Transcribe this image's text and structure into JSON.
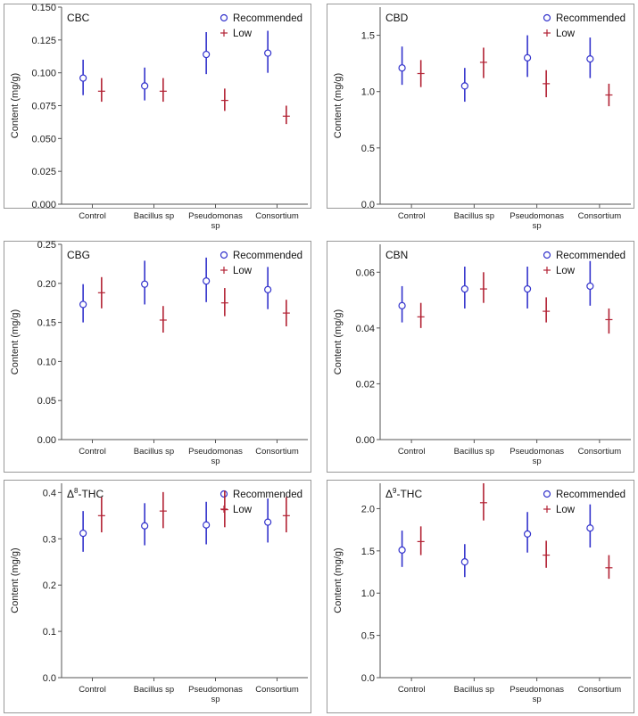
{
  "colors": {
    "recommended": "#3333cc",
    "low": "#b22234",
    "axis": "#555555",
    "panel_border": "#999999"
  },
  "chart_data": [
    {
      "type": "errorbar",
      "title": "CBC",
      "title_sup": "",
      "title_suffix": "",
      "ylabel": "Content (mg/g)",
      "categories": [
        [
          "Control"
        ],
        [
          "Bacillus sp"
        ],
        [
          "Pseudomonas",
          "sp"
        ],
        [
          "Consortium"
        ]
      ],
      "ylim": [
        0,
        0.15
      ],
      "yticks": [
        0.0,
        0.025,
        0.05,
        0.075,
        0.1,
        0.125,
        0.15
      ],
      "ytick_labels": [
        "0.000",
        "0.025",
        "0.050",
        "0.075",
        "0.100",
        "0.125",
        "0.150"
      ],
      "legend": [
        "Recommended",
        "Low"
      ],
      "series": [
        {
          "name": "Recommended",
          "marker": "circle",
          "values": [
            0.096,
            0.09,
            0.114,
            0.115
          ],
          "lower": [
            0.083,
            0.079,
            0.099,
            0.1
          ],
          "upper": [
            0.11,
            0.104,
            0.131,
            0.132
          ]
        },
        {
          "name": "Low",
          "marker": "plus",
          "values": [
            0.086,
            0.086,
            0.079,
            0.067
          ],
          "lower": [
            0.078,
            0.078,
            0.071,
            0.061
          ],
          "upper": [
            0.096,
            0.096,
            0.088,
            0.075
          ]
        }
      ]
    },
    {
      "type": "errorbar",
      "title": "CBD",
      "title_sup": "",
      "title_suffix": "",
      "ylabel": "Content (mg/g)",
      "categories": [
        [
          "Control"
        ],
        [
          "Bacillus sp"
        ],
        [
          "Pseudomonas",
          "sp"
        ],
        [
          "Consortium"
        ]
      ],
      "ylim": [
        0,
        1.75
      ],
      "yticks": [
        0.0,
        0.5,
        1.0,
        1.5
      ],
      "ytick_labels": [
        "0.0",
        "0.5",
        "1.0",
        "1.5"
      ],
      "legend": [
        "Recommended",
        "Low"
      ],
      "series": [
        {
          "name": "Recommended",
          "marker": "circle",
          "values": [
            1.21,
            1.05,
            1.3,
            1.29
          ],
          "lower": [
            1.06,
            0.91,
            1.13,
            1.12
          ],
          "upper": [
            1.4,
            1.21,
            1.5,
            1.48
          ]
        },
        {
          "name": "Low",
          "marker": "plus",
          "values": [
            1.16,
            1.26,
            1.07,
            0.97
          ],
          "lower": [
            1.04,
            1.12,
            0.95,
            0.87
          ],
          "upper": [
            1.28,
            1.39,
            1.19,
            1.07
          ]
        }
      ]
    },
    {
      "type": "errorbar",
      "title": "CBG",
      "title_sup": "",
      "title_suffix": "",
      "ylabel": "Content (mg/g)",
      "categories": [
        [
          "Control"
        ],
        [
          "Bacillus sp"
        ],
        [
          "Pseudomonas",
          "sp"
        ],
        [
          "Consortium"
        ]
      ],
      "ylim": [
        0,
        0.25
      ],
      "yticks": [
        0.0,
        0.05,
        0.1,
        0.15,
        0.2,
        0.25
      ],
      "ytick_labels": [
        "0.00",
        "0.05",
        "0.10",
        "0.15",
        "0.20",
        "0.25"
      ],
      "legend": [
        "Recommended",
        "Low"
      ],
      "series": [
        {
          "name": "Recommended",
          "marker": "circle",
          "values": [
            0.173,
            0.199,
            0.203,
            0.192
          ],
          "lower": [
            0.15,
            0.173,
            0.176,
            0.167
          ],
          "upper": [
            0.199,
            0.229,
            0.233,
            0.221
          ]
        },
        {
          "name": "Low",
          "marker": "plus",
          "values": [
            0.188,
            0.153,
            0.175,
            0.162
          ],
          "lower": [
            0.168,
            0.137,
            0.158,
            0.145
          ],
          "upper": [
            0.208,
            0.171,
            0.194,
            0.179
          ]
        }
      ]
    },
    {
      "type": "errorbar",
      "title": "CBN",
      "title_sup": "",
      "title_suffix": "",
      "ylabel": "Content (mg/g)",
      "categories": [
        [
          "Control"
        ],
        [
          "Bacillus sp"
        ],
        [
          "Pseudomonas",
          "sp"
        ],
        [
          "Consortium"
        ]
      ],
      "ylim": [
        0,
        0.07
      ],
      "yticks": [
        0.0,
        0.02,
        0.04,
        0.06
      ],
      "ytick_labels": [
        "0.00",
        "0.02",
        "0.04",
        "0.06"
      ],
      "legend": [
        "Recommended",
        "Low"
      ],
      "series": [
        {
          "name": "Recommended",
          "marker": "circle",
          "values": [
            0.048,
            0.054,
            0.054,
            0.055
          ],
          "lower": [
            0.042,
            0.047,
            0.047,
            0.048
          ],
          "upper": [
            0.055,
            0.062,
            0.062,
            0.064
          ]
        },
        {
          "name": "Low",
          "marker": "plus",
          "values": [
            0.044,
            0.054,
            0.046,
            0.043
          ],
          "lower": [
            0.04,
            0.049,
            0.042,
            0.038
          ],
          "upper": [
            0.049,
            0.06,
            0.051,
            0.047
          ]
        }
      ]
    },
    {
      "type": "errorbar",
      "title": "Δ",
      "title_sup": "8",
      "title_suffix": "-THC",
      "ylabel": "Content (mg/g)",
      "categories": [
        [
          "Control"
        ],
        [
          "Bacillus sp"
        ],
        [
          "Pseudomonas",
          "sp"
        ],
        [
          "Consortium"
        ]
      ],
      "ylim": [
        0,
        0.42
      ],
      "yticks": [
        0.0,
        0.1,
        0.2,
        0.3,
        0.4
      ],
      "ytick_labels": [
        "0.0",
        "0.1",
        "0.2",
        "0.3",
        "0.4"
      ],
      "legend": [
        "Recommended",
        "Low"
      ],
      "series": [
        {
          "name": "Recommended",
          "marker": "circle",
          "values": [
            0.312,
            0.328,
            0.33,
            0.336
          ],
          "lower": [
            0.272,
            0.286,
            0.288,
            0.292
          ],
          "upper": [
            0.36,
            0.377,
            0.38,
            0.387
          ]
        },
        {
          "name": "Low",
          "marker": "plus",
          "values": [
            0.35,
            0.36,
            0.363,
            0.35
          ],
          "lower": [
            0.314,
            0.323,
            0.325,
            0.314
          ],
          "upper": [
            0.39,
            0.401,
            0.404,
            0.39
          ]
        }
      ]
    },
    {
      "type": "errorbar",
      "title": "Δ",
      "title_sup": "9",
      "title_suffix": "-THC",
      "ylabel": "Content (mg/g)",
      "categories": [
        [
          "Control"
        ],
        [
          "Bacillus sp"
        ],
        [
          "Pseudomonas",
          "sp"
        ],
        [
          "Consortium"
        ]
      ],
      "ylim": [
        0,
        2.3
      ],
      "yticks": [
        0.0,
        0.5,
        1.0,
        1.5,
        2.0
      ],
      "ytick_labels": [
        "0.0",
        "0.5",
        "1.0",
        "1.5",
        "2.0"
      ],
      "legend": [
        "Recommended",
        "Low"
      ],
      "series": [
        {
          "name": "Recommended",
          "marker": "circle",
          "values": [
            1.51,
            1.37,
            1.7,
            1.77
          ],
          "lower": [
            1.31,
            1.19,
            1.48,
            1.54
          ],
          "upper": [
            1.74,
            1.58,
            1.96,
            2.05
          ]
        },
        {
          "name": "Low",
          "marker": "plus",
          "values": [
            1.61,
            2.07,
            1.45,
            1.3
          ],
          "lower": [
            1.45,
            1.86,
            1.3,
            1.17
          ],
          "upper": [
            1.79,
            2.3,
            1.62,
            1.45
          ]
        }
      ]
    }
  ]
}
